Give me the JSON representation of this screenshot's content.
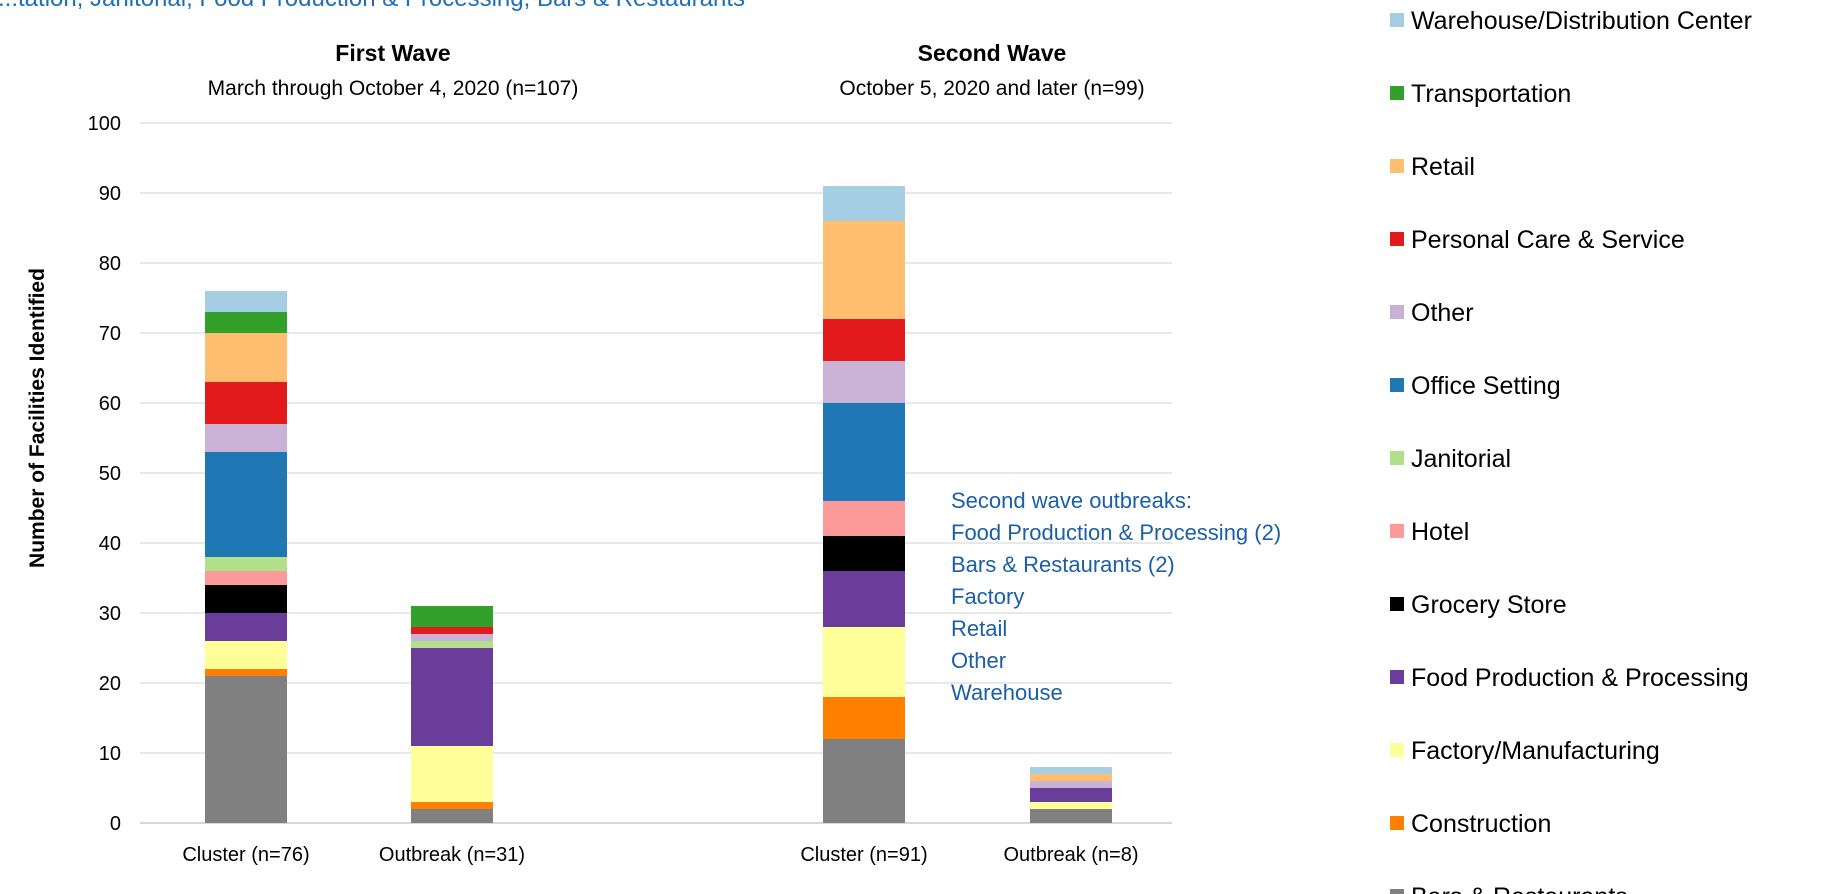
{
  "chart_data": {
    "type": "bar",
    "stacked": true,
    "title": "...tation, Janitorial, Food Production & Processing, Bars & Restaurants",
    "ylabel": "Number of Facilities Identified",
    "xlabel": "",
    "ylim": [
      0,
      100
    ],
    "yticks": [
      "0",
      "10",
      "20",
      "30",
      "40",
      "50",
      "60",
      "70",
      "80",
      "90",
      "100"
    ],
    "grid": true,
    "legend_position": "right",
    "groups": [
      {
        "title": "First Wave",
        "subtitle": "March through October 4, 2020 (n=107)"
      },
      {
        "title": "Second Wave",
        "subtitle": "October 5, 2020 and later (n=99)"
      }
    ],
    "categories": [
      "Cluster (n=76)",
      "Outbreak (n=31)",
      "Cluster (n=91)",
      "Outbreak (n=8)"
    ],
    "series": [
      {
        "name": "Bars & Restaurants",
        "color": "#808080",
        "values": [
          21,
          2,
          12,
          2
        ]
      },
      {
        "name": "Construction",
        "color": "#ff7f00",
        "values": [
          1,
          1,
          6,
          0
        ]
      },
      {
        "name": "Factory/Manufacturing",
        "color": "#ffff99",
        "values": [
          4,
          8,
          10,
          1
        ]
      },
      {
        "name": "Food Production & Processing",
        "color": "#6a3d9a",
        "values": [
          4,
          14,
          8,
          2
        ]
      },
      {
        "name": "Grocery Store",
        "color": "#000000",
        "values": [
          4,
          0,
          5,
          0
        ]
      },
      {
        "name": "Hotel",
        "color": "#fb9a99",
        "values": [
          2,
          0,
          5,
          0
        ]
      },
      {
        "name": "Janitorial",
        "color": "#b2df8a",
        "values": [
          2,
          1,
          0,
          0
        ]
      },
      {
        "name": "Office Setting",
        "color": "#1f78b4",
        "values": [
          15,
          0,
          14,
          0
        ]
      },
      {
        "name": "Other",
        "color": "#cab2d6",
        "values": [
          4,
          1,
          6,
          1
        ]
      },
      {
        "name": "Personal Care & Service",
        "color": "#e31a1c",
        "values": [
          6,
          1,
          6,
          0
        ]
      },
      {
        "name": "Retail",
        "color": "#fdbf6f",
        "values": [
          7,
          0,
          14,
          1
        ]
      },
      {
        "name": "Transportation",
        "color": "#33a02c",
        "values": [
          3,
          3,
          0,
          0
        ]
      },
      {
        "name": "Warehouse/Distribution Center",
        "color": "#a6cee3",
        "values": [
          3,
          0,
          5,
          1
        ]
      }
    ],
    "annotation": {
      "lines": [
        "Second wave outbreaks:",
        "Food Production & Processing (2)",
        "Bars & Restaurants (2)",
        "Factory",
        "Retail",
        "Other",
        "Warehouse"
      ]
    }
  }
}
